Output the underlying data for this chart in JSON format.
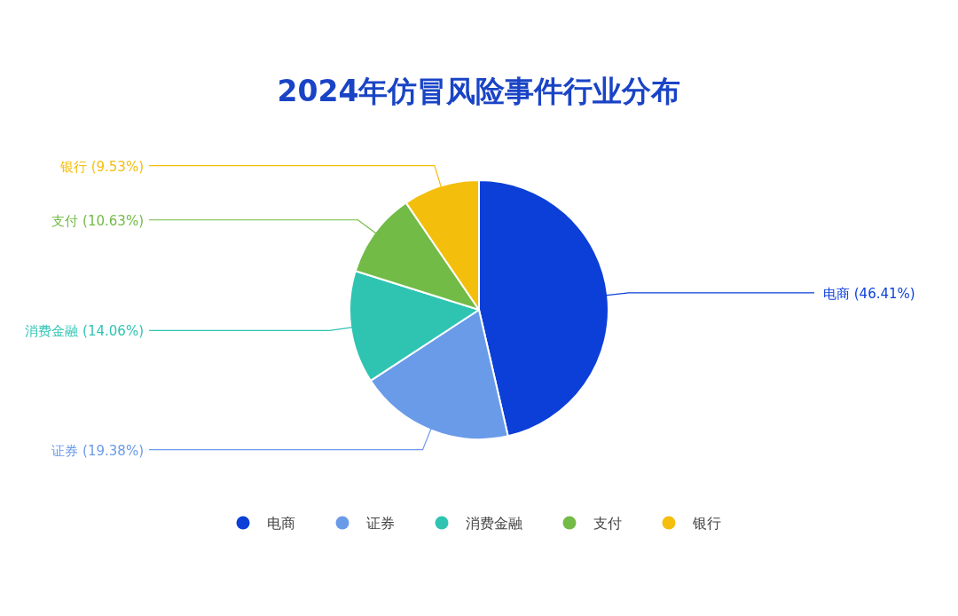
{
  "chart_data": {
    "type": "pie",
    "title": "2024年仿冒风险事件行业分布",
    "categories": [
      "电商",
      "证券",
      "消费金融",
      "支付",
      "银行"
    ],
    "values": [
      46.41,
      19.38,
      14.06,
      10.63,
      9.53
    ],
    "value_labels": [
      "(46.41%)",
      "(19.38%)",
      "(14.06%)",
      "(10.63%)",
      "(9.53%)"
    ],
    "colors": [
      "#0b3fd8",
      "#6a9be9",
      "#2fc4b2",
      "#72bb46",
      "#f4be0c"
    ],
    "legend": "bottom"
  }
}
